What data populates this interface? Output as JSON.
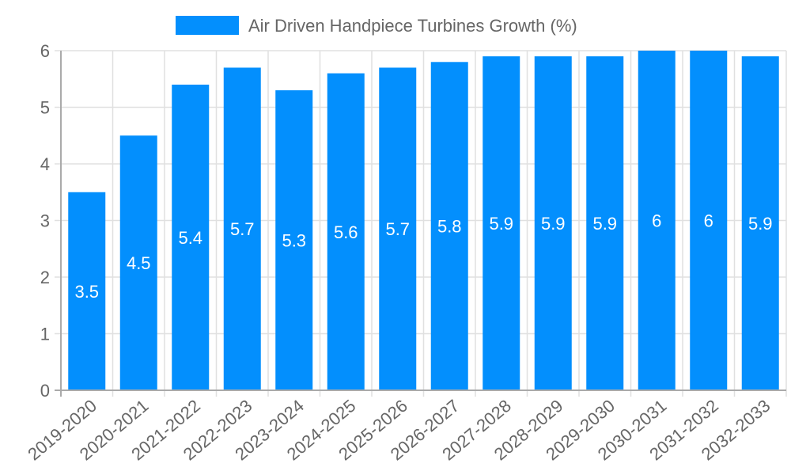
{
  "chart_data": {
    "type": "bar",
    "title": "",
    "legend": [
      {
        "label": "Air Driven Handpiece Turbines Growth (%)",
        "color": "#038ffd"
      }
    ],
    "legend_position": "top",
    "categories": [
      "2019-2020",
      "2020-2021",
      "2021-2022",
      "2022-2023",
      "2023-2024",
      "2024-2025",
      "2025-2026",
      "2026-2027",
      "2027-2028",
      "2028-2029",
      "2029-2030",
      "2030-2031",
      "2031-2032",
      "2032-2033"
    ],
    "series": [
      {
        "name": "Air Driven Handpiece Turbines Growth (%)",
        "values": [
          3.5,
          4.5,
          5.4,
          5.7,
          5.3,
          5.6,
          5.7,
          5.8,
          5.9,
          5.9,
          5.9,
          6,
          6,
          5.9
        ],
        "color": "#038ffd"
      }
    ],
    "data_labels": [
      "3.5",
      "4.5",
      "5.4",
      "5.7",
      "5.3",
      "5.6",
      "5.7",
      "5.8",
      "5.9",
      "5.9",
      "5.9",
      "6",
      "6",
      "5.9"
    ],
    "xlabel": "",
    "ylabel": "",
    "ylim": [
      0,
      6
    ],
    "yticks": [
      0,
      1,
      2,
      3,
      4,
      5,
      6
    ],
    "grid": true
  },
  "colors": {
    "bar": "#038ffd",
    "grid": "#e0e0e0",
    "axis": "#aaaaaa",
    "text": "#666666",
    "label": "#ffffff"
  }
}
